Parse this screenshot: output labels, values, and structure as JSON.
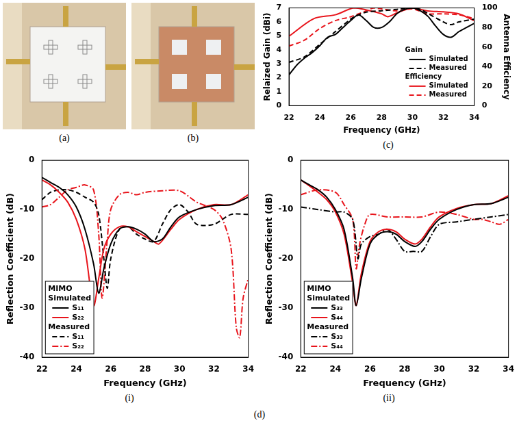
{
  "chart_data": [
    {
      "type": "line",
      "label": "(c)",
      "x_label": "Frequency (GHz)",
      "y_label": "Relaized Gain (dBi)",
      "y2_label": "Antenna Efficiency",
      "xlim": [
        22,
        34
      ],
      "xticks": [
        22,
        24,
        26,
        28,
        30,
        32,
        34
      ],
      "ylim": [
        0,
        7
      ],
      "yticks": [
        0,
        1,
        2,
        3,
        4,
        5,
        6,
        7
      ],
      "y2lim": [
        0,
        100
      ],
      "y2ticks": [
        0,
        20,
        40,
        60,
        80,
        100
      ],
      "grid": false,
      "legend": "lower right",
      "series": [
        {
          "name": "Simulated",
          "group": "Gain",
          "color": "#000000",
          "line_style": "solid",
          "x": [
            22,
            22.5,
            23,
            23.5,
            24,
            24.5,
            25,
            25.5,
            26,
            26.5,
            27,
            27.5,
            28,
            28.5,
            29,
            29.5,
            30,
            30.5,
            31,
            31.5,
            32,
            32.5,
            33,
            33.5,
            34
          ],
          "values": [
            2.2,
            2.9,
            3.4,
            3.8,
            4.3,
            4.9,
            5.1,
            5.6,
            6.1,
            6.5,
            6.1,
            5.6,
            5.6,
            6.0,
            6.6,
            6.9,
            7.0,
            6.8,
            6.4,
            5.7,
            5.1,
            4.9,
            5.3,
            5.6,
            5.9
          ]
        },
        {
          "name": "Measured",
          "group": "Gain",
          "color": "#000000",
          "line_style": "dashed",
          "x": [
            22,
            23,
            24,
            25,
            26,
            26.5,
            27,
            28,
            29,
            30,
            30.5,
            31,
            32,
            32.5,
            33,
            34
          ],
          "values": [
            3.1,
            3.5,
            4.4,
            5.3,
            6.2,
            6.5,
            6.7,
            6.8,
            6.9,
            7.0,
            6.9,
            6.6,
            6.0,
            5.8,
            6.0,
            6.2
          ]
        },
        {
          "name": "Simulated",
          "group": "Efficiency",
          "color": "#e8141b",
          "line_style": "solid",
          "axis": "y2",
          "x": [
            22,
            23.6,
            25,
            26.2,
            27,
            28,
            28.4,
            29,
            29.5,
            30,
            31,
            32,
            33,
            34
          ],
          "values": [
            71,
            89,
            93,
            100,
            98,
            94,
            91,
            95,
            98,
            100,
            97,
            96,
            94,
            87
          ]
        },
        {
          "name": "Measured",
          "group": "Efficiency",
          "color": "#e8141b",
          "line_style": "dashed",
          "axis": "y2",
          "x": [
            22,
            23,
            24,
            25,
            26,
            27,
            27.5,
            28,
            29,
            30,
            31,
            32,
            33,
            34
          ],
          "values": [
            61,
            67,
            79,
            87,
            91,
            97,
            100,
            99,
            97,
            99,
            94,
            94,
            93,
            89
          ]
        }
      ]
    },
    {
      "type": "line",
      "label": "(i)",
      "x_label": "Frequency (GHz)",
      "y_label": "Reflection Coefficient (dB)",
      "xlim": [
        22,
        34
      ],
      "xticks": [
        22,
        24,
        26,
        28,
        30,
        32,
        34
      ],
      "ylim": [
        -40,
        0
      ],
      "yticks": [
        -40,
        -30,
        -20,
        -10,
        0
      ],
      "grid": false,
      "legend": "lower left",
      "legend_title": "MIMO",
      "series": [
        {
          "name": "S₁₁",
          "group": "Simulated",
          "color": "#000000",
          "line_style": "solid",
          "x": [
            22,
            22.5,
            23,
            23.5,
            24,
            24.5,
            25,
            25.3,
            25.6,
            26,
            26.5,
            27,
            27.5,
            28,
            28.5,
            29,
            29.5,
            30,
            31,
            32,
            33,
            34
          ],
          "values": [
            -3.5,
            -4.5,
            -5.5,
            -7,
            -9.5,
            -14,
            -21,
            -27,
            -22,
            -17,
            -14,
            -13.5,
            -14,
            -15,
            -16.5,
            -16,
            -13.5,
            -11.5,
            -10,
            -9.2,
            -9,
            -7.5
          ]
        },
        {
          "name": "S₂₂",
          "group": "Simulated",
          "color": "#e8141b",
          "line_style": "solid",
          "x": [
            22,
            22.5,
            23,
            23.5,
            24,
            24.5,
            25,
            25.3,
            25.6,
            26,
            26.5,
            27,
            27.5,
            28,
            28.5,
            28.8,
            29.5,
            30,
            31,
            32,
            33,
            34
          ],
          "values": [
            -4,
            -5,
            -6.5,
            -8.5,
            -12,
            -18,
            -29.5,
            -24,
            -18,
            -15,
            -13.5,
            -13.5,
            -14.5,
            -15.5,
            -16.5,
            -17,
            -14,
            -12,
            -10,
            -9,
            -9,
            -7
          ]
        },
        {
          "name": "S₁₁",
          "group": "Measured",
          "color": "#000000",
          "line_style": "dashed",
          "x": [
            22,
            22.5,
            23,
            23.5,
            24,
            24.5,
            25,
            25.3,
            25.6,
            25.8,
            26,
            26.5,
            27,
            27.5,
            28,
            28.5,
            29,
            29.5,
            30,
            30.5,
            31,
            32,
            33,
            34
          ],
          "values": [
            -8,
            -6.5,
            -6,
            -6,
            -6.5,
            -7.5,
            -8.5,
            -11,
            -20,
            -26,
            -20,
            -14,
            -13.5,
            -15,
            -16,
            -16.5,
            -13,
            -10,
            -9,
            -10.5,
            -13,
            -13,
            -11,
            -11
          ]
        },
        {
          "name": "S₂₂",
          "group": "Measured",
          "color": "#e8141b",
          "line_style": "dashdot",
          "x": [
            22,
            22.5,
            23,
            23.5,
            24,
            24.5,
            25,
            25.3,
            25.5,
            25.8,
            26,
            26.5,
            27,
            27.5,
            28,
            29,
            30,
            31,
            32,
            32.5,
            33,
            33.3,
            33.5,
            33.7,
            34
          ],
          "values": [
            -9.5,
            -9,
            -7.5,
            -6,
            -5.5,
            -5,
            -6,
            -15,
            -28,
            -16,
            -10,
            -7,
            -6.5,
            -7,
            -6.5,
            -6.2,
            -6.2,
            -8.5,
            -10,
            -12,
            -18,
            -34,
            -36,
            -28,
            -24
          ]
        }
      ]
    },
    {
      "type": "line",
      "label": "(ii)",
      "x_label": "Frequency (GHz)",
      "y_label": "Reflection Coefficient (dB)",
      "xlim": [
        22,
        34
      ],
      "xticks": [
        22,
        24,
        26,
        28,
        30,
        32,
        34
      ],
      "ylim": [
        -40,
        0
      ],
      "yticks": [
        -40,
        -30,
        -20,
        -10,
        0
      ],
      "grid": false,
      "legend": "lower left",
      "legend_title": "MIMO",
      "series": [
        {
          "name": "S₃₃",
          "group": "Simulated",
          "color": "#000000",
          "line_style": "solid",
          "x": [
            22,
            22.5,
            23,
            23.5,
            24,
            24.5,
            25,
            25.2,
            25.5,
            26,
            26.5,
            27,
            27.5,
            28,
            28.6,
            29,
            29.5,
            30,
            31,
            32,
            33,
            34
          ],
          "values": [
            -4,
            -5,
            -6,
            -7.5,
            -10,
            -14,
            -24,
            -29.5,
            -24,
            -17,
            -15,
            -14.5,
            -15,
            -16.5,
            -17.5,
            -16.5,
            -14,
            -12,
            -10,
            -9,
            -8.8,
            -7.5
          ]
        },
        {
          "name": "S₄₄",
          "group": "Simulated",
          "color": "#e8141b",
          "line_style": "solid",
          "x": [
            22,
            22.5,
            23,
            23.5,
            24,
            24.5,
            25,
            25.2,
            25.5,
            26,
            26.5,
            27,
            27.5,
            28,
            28.6,
            29,
            29.5,
            30,
            31,
            32,
            33,
            34
          ],
          "values": [
            -4,
            -5.2,
            -6.5,
            -8,
            -10.5,
            -15,
            -25,
            -29.5,
            -23,
            -16.5,
            -14.5,
            -14,
            -14.5,
            -16,
            -17,
            -16,
            -13.5,
            -11.5,
            -9.8,
            -9,
            -8.8,
            -7.2
          ]
        },
        {
          "name": "S₃₃",
          "group": "Measured",
          "color": "#000000",
          "line_style": "dashdot",
          "x": [
            22,
            23,
            24,
            24.5,
            25,
            25.3,
            25.5,
            26,
            26.5,
            27,
            27.5,
            28,
            28.5,
            29,
            29.5,
            30,
            31,
            32,
            33,
            34
          ],
          "values": [
            -9.5,
            -10,
            -10.5,
            -10.5,
            -12,
            -20,
            -17,
            -15.5,
            -15,
            -14,
            -16,
            -18.5,
            -18.5,
            -18.5,
            -15.5,
            -13,
            -12.5,
            -12,
            -11.5,
            -11
          ]
        },
        {
          "name": "S₄₄",
          "group": "Measured",
          "color": "#e8141b",
          "line_style": "dashdot",
          "x": [
            22,
            23,
            24,
            24.5,
            25,
            25.2,
            25.4,
            25.7,
            26,
            27,
            28,
            29,
            30,
            31,
            32,
            32.5,
            33,
            33.5,
            34
          ],
          "values": [
            -7,
            -6,
            -6.5,
            -9,
            -12,
            -22,
            -17,
            -13,
            -11,
            -11.5,
            -11.5,
            -11.5,
            -10.5,
            -11,
            -12,
            -12,
            -12.5,
            -13,
            -12
          ]
        }
      ]
    }
  ],
  "images": [
    {
      "label": "(a)"
    },
    {
      "label": "(b)"
    }
  ],
  "panel_label": "(d)"
}
